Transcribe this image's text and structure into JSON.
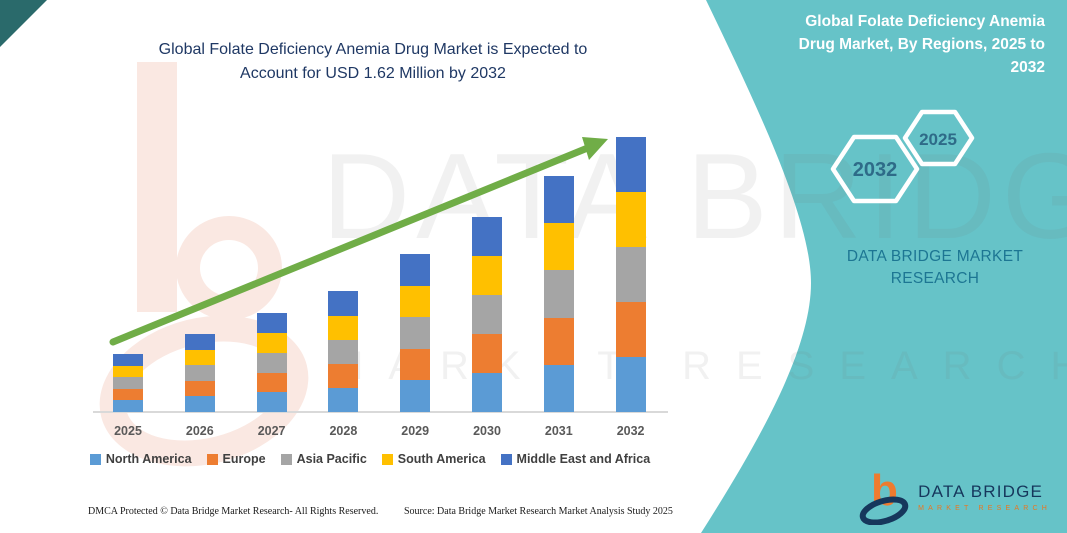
{
  "main_title": {
    "lines": [
      "Global Folate Deficiency Anemia Drug Market  is Expected to",
      "Account for USD 1.62 Million by 2032"
    ],
    "color": "#1F3864"
  },
  "panel": {
    "background_color": "#66C3C8",
    "title_lines": [
      "Global Folate Deficiency Anemia",
      "Drug Market, By Regions, 2025 to",
      "2032"
    ],
    "hexagons": [
      {
        "label": "2032"
      },
      {
        "label": "2025"
      }
    ],
    "brand_lines": [
      "DATA BRIDGE MARKET",
      "RESEARCH"
    ],
    "brand_color": "#1D7693"
  },
  "logo": {
    "name": "DATA BRIDGE",
    "sub": "MARKET RESEARCH",
    "navy": "#16375C",
    "orange": "#E87722"
  },
  "watermark": {
    "big": "DATA BRIDGE",
    "tagline": "MARKET RESEARCH"
  },
  "footer": {
    "left": "DMCA Protected © Data Bridge Market Research-  All Rights Reserved.",
    "right": "Source: Data Bridge Market Research  Market Analysis Study 2025"
  },
  "chart_data": {
    "type": "bar",
    "stacked": true,
    "unit": "USD Million",
    "categories": [
      "2025",
      "2026",
      "2027",
      "2028",
      "2029",
      "2030",
      "2031",
      "2032"
    ],
    "series": [
      {
        "name": "North America",
        "color": "#5B9BD5",
        "values": [
          0.068,
          0.092,
          0.116,
          0.142,
          0.186,
          0.23,
          0.278,
          0.324
        ]
      },
      {
        "name": "Europe",
        "color": "#ED7D31",
        "values": [
          0.068,
          0.092,
          0.116,
          0.142,
          0.186,
          0.23,
          0.278,
          0.324
        ]
      },
      {
        "name": "Asia Pacific",
        "color": "#A5A5A5",
        "values": [
          0.068,
          0.092,
          0.116,
          0.142,
          0.186,
          0.23,
          0.278,
          0.324
        ]
      },
      {
        "name": "South America",
        "color": "#FFC000",
        "values": [
          0.068,
          0.092,
          0.116,
          0.142,
          0.186,
          0.23,
          0.278,
          0.324
        ]
      },
      {
        "name": "Middle East and Africa",
        "color": "#4472C4",
        "values": [
          0.068,
          0.092,
          0.116,
          0.142,
          0.186,
          0.23,
          0.278,
          0.324
        ]
      }
    ],
    "totals": [
      0.34,
      0.46,
      0.58,
      0.71,
      0.93,
      1.15,
      1.39,
      1.62
    ],
    "highlight_total_2032": "1.62",
    "trend_arrow_color": "#70AD47",
    "axis_color": "#D9D9D9",
    "tick_label_color": "#595959",
    "legend_position": "bottom",
    "gridlines": false
  }
}
